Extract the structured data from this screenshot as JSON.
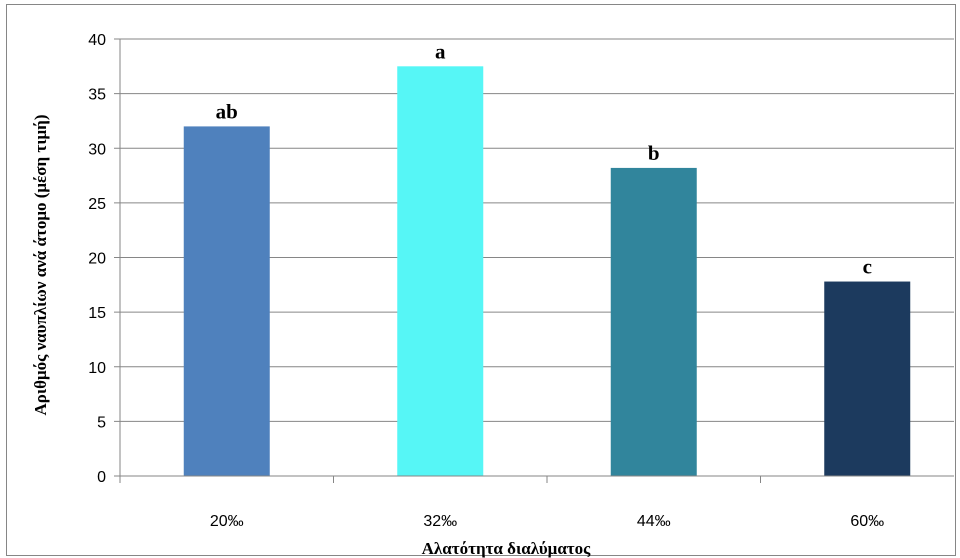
{
  "chart_data": {
    "type": "bar",
    "title": "",
    "xlabel": "Αλατότητα διαλύματος",
    "ylabel": "Αριθμός ναυπλίων ανά άτομο (μέση τιμή)",
    "categories": [
      "20‰",
      "32‰",
      "44‰",
      "60‰"
    ],
    "values": [
      32,
      37.5,
      28.2,
      17.8
    ],
    "data_labels": [
      "ab",
      "a",
      "b",
      "c"
    ],
    "colors": [
      "#4f81bd",
      "#56f6f6",
      "#31859c",
      "#1c3a5e"
    ],
    "ylim": [
      0,
      40
    ],
    "yticks": [
      0,
      5,
      10,
      15,
      20,
      25,
      30,
      35,
      40
    ],
    "grid": true,
    "legend": "none"
  }
}
